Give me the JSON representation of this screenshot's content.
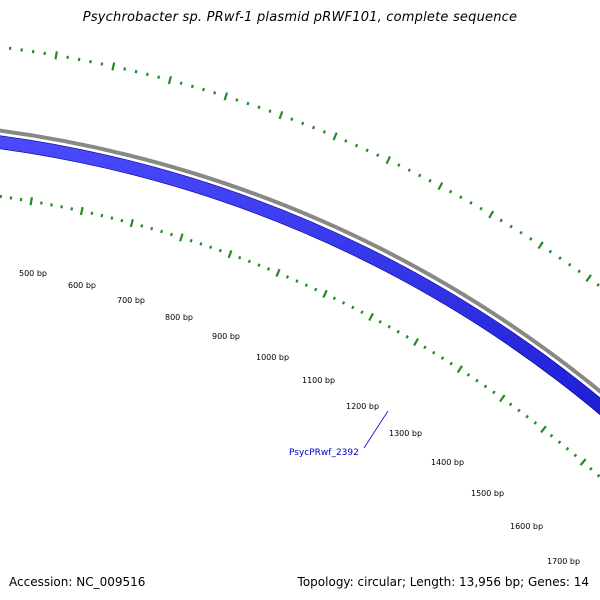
{
  "header": {
    "title": "Psychrobacter sp. PRwf-1 plasmid pRWF101, complete sequence"
  },
  "footer": {
    "accession": "Accession: NC_009516",
    "summary": "Topology: circular; Length: 13,956 bp; Genes: 14"
  },
  "ruler": {
    "tick_labels": [
      "500 bp",
      "600 bp",
      "700 bp",
      "800 bp",
      "900 bp",
      "1000 bp",
      "1100 bp",
      "1200 bp",
      "1300 bp",
      "1400 bp",
      "1500 bp",
      "1600 bp",
      "1700 bp"
    ]
  },
  "genes": [
    {
      "label": "PsycPRwf_2392",
      "strand": "reverse",
      "color": "#0000ee"
    }
  ],
  "colors": {
    "forward_feature": "#ee0000",
    "reverse_feature": "#0000ee",
    "backbone": "#888888",
    "ticks": "#228b22",
    "gene_label": "#0000cc"
  }
}
